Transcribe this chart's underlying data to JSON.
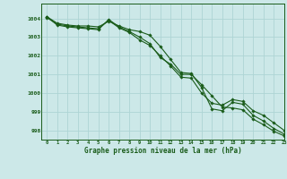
{
  "title": "Graphe pression niveau de la mer (hPa)",
  "bg_color": "#cce8e8",
  "grid_color": "#aed4d4",
  "line_color": "#1a5c1a",
  "xlim": [
    -0.5,
    23
  ],
  "ylim": [
    997.5,
    1004.8
  ],
  "yticks": [
    998,
    999,
    1000,
    1001,
    1002,
    1003,
    1004
  ],
  "xticks": [
    0,
    1,
    2,
    3,
    4,
    5,
    6,
    7,
    8,
    9,
    10,
    11,
    12,
    13,
    14,
    15,
    16,
    17,
    18,
    19,
    20,
    21,
    22,
    23
  ],
  "series1": [
    1004.1,
    1003.75,
    1003.65,
    1003.6,
    1003.6,
    1003.55,
    1003.85,
    1003.6,
    1003.4,
    1003.3,
    1003.1,
    1002.5,
    1001.8,
    1001.1,
    1001.05,
    1000.3,
    999.15,
    999.05,
    999.5,
    999.4,
    998.8,
    998.5,
    998.1,
    997.8
  ],
  "series2": [
    1004.1,
    1003.65,
    1003.55,
    1003.5,
    1003.45,
    1003.4,
    1003.95,
    1003.55,
    1003.3,
    1003.0,
    1002.65,
    1001.9,
    1001.55,
    1001.0,
    1001.0,
    1000.45,
    999.85,
    999.25,
    999.2,
    999.1,
    998.6,
    998.3,
    997.95,
    997.7
  ],
  "series3": [
    1004.05,
    1003.7,
    1003.6,
    1003.55,
    1003.5,
    1003.45,
    1003.9,
    1003.5,
    1003.25,
    1002.85,
    1002.55,
    1002.0,
    1001.45,
    1000.85,
    1000.8,
    1000.0,
    999.45,
    999.35,
    999.65,
    999.55,
    999.05,
    998.8,
    998.4,
    998.0
  ]
}
